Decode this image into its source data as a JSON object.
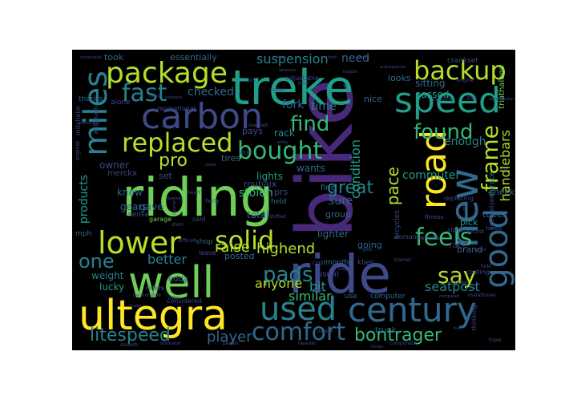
{
  "palette": {
    "background": "#000000",
    "viridis": [
      "#440154",
      "#482878",
      "#3e4989",
      "#31688e",
      "#26828e",
      "#1f9e89",
      "#35b779",
      "#6ece58",
      "#b5de2b",
      "#fde725"
    ]
  },
  "words": [
    {
      "text": "riding",
      "color": "#6ece58",
      "weight": 1.0
    },
    {
      "text": "bike",
      "color": "#482878",
      "weight": 1.0
    },
    {
      "text": "ride",
      "color": "#3e4989",
      "weight": 0.9
    },
    {
      "text": "ultegra",
      "color": "#fde725",
      "weight": 0.8
    },
    {
      "text": "treke",
      "color": "#1f9e89",
      "weight": 0.78
    },
    {
      "text": "carbon",
      "color": "#3e4989",
      "weight": 0.66
    },
    {
      "text": "well",
      "color": "#6ece58",
      "weight": 0.66
    },
    {
      "text": "century",
      "color": "#31688e",
      "weight": 0.6
    },
    {
      "text": "miles",
      "color": "#26828e",
      "weight": 0.6
    },
    {
      "text": "speed",
      "color": "#1f9e89",
      "weight": 0.54
    },
    {
      "text": "road",
      "color": "#fde725",
      "weight": 0.54
    },
    {
      "text": "new",
      "color": "#31688e",
      "weight": 0.56
    },
    {
      "text": "lower",
      "color": "#b5de2b",
      "weight": 0.5
    },
    {
      "text": "package",
      "color": "#b5de2b",
      "weight": 0.48
    },
    {
      "text": "used",
      "color": "#26828e",
      "weight": 0.5
    },
    {
      "text": "good",
      "color": "#31688e",
      "weight": 0.5
    },
    {
      "text": "replaced",
      "color": "#b5de2b",
      "weight": 0.44
    },
    {
      "text": "backup",
      "color": "#b5de2b",
      "weight": 0.4
    },
    {
      "text": "fast",
      "color": "#26828e",
      "weight": 0.4
    },
    {
      "text": "solid",
      "color": "#b5de2b",
      "weight": 0.4
    },
    {
      "text": "comfort",
      "color": "#31688e",
      "weight": 0.36
    },
    {
      "text": "bought",
      "color": "#35b779",
      "weight": 0.36
    },
    {
      "text": "frame",
      "color": "#b5de2b",
      "weight": 0.36
    },
    {
      "text": "found",
      "color": "#35b779",
      "weight": 0.36
    },
    {
      "text": "feels",
      "color": "#35b779",
      "weight": 0.36
    },
    {
      "text": "find",
      "color": "#35b779",
      "weight": 0.32
    },
    {
      "text": "say",
      "color": "#b5de2b",
      "weight": 0.32
    },
    {
      "text": "one",
      "color": "#26828e",
      "weight": 0.3
    },
    {
      "text": "pads",
      "color": "#26828e",
      "weight": 0.3
    },
    {
      "text": "pace",
      "color": "#b5de2b",
      "weight": 0.3
    },
    {
      "text": "litespeed",
      "color": "#26828e",
      "weight": 0.28
    },
    {
      "text": "great",
      "color": "#26828e",
      "weight": 0.28
    },
    {
      "text": "pro",
      "color": "#b5de2b",
      "weight": 0.28
    },
    {
      "text": "bontrager",
      "color": "#35b779",
      "weight": 0.24
    },
    {
      "text": "handlebars",
      "color": "#b5de2b",
      "weight": 0.24
    },
    {
      "text": "raise",
      "color": "#b5de2b",
      "weight": 0.22
    },
    {
      "text": "highend",
      "color": "#b5de2b",
      "weight": 0.2
    },
    {
      "text": "suspension",
      "color": "#26828e",
      "weight": 0.22
    },
    {
      "text": "seatpost",
      "color": "#26828e",
      "weight": 0.2
    },
    {
      "text": "condition",
      "color": "#1f9e89",
      "weight": 0.2
    },
    {
      "text": "player",
      "color": "#31688e",
      "weight": 0.2
    },
    {
      "text": "anyone",
      "color": "#b5de2b",
      "weight": 0.2
    },
    {
      "text": "similar",
      "color": "#35b779",
      "weight": 0.2
    },
    {
      "text": "better",
      "color": "#26828e",
      "weight": 0.18
    },
    {
      "text": "bit",
      "color": "#1f9e89",
      "weight": 0.18
    },
    {
      "text": "need",
      "color": "#31688e",
      "weight": 0.18
    },
    {
      "text": "time",
      "color": "#26828e",
      "weight": 0.18
    },
    {
      "text": "sure",
      "color": "#31688e",
      "weight": 0.18
    },
    {
      "text": "products",
      "color": "#1f9e89",
      "weight": 0.16
    },
    {
      "text": "commuter",
      "color": "#1f9e89",
      "weight": 0.16
    },
    {
      "text": "checked",
      "color": "#31688e",
      "weight": 0.16
    },
    {
      "text": "stolen",
      "color": "#35b779",
      "weight": 0.16
    },
    {
      "text": "fork",
      "color": "#31688e",
      "weight": 0.16
    },
    {
      "text": "enough",
      "color": "#26828e",
      "weight": 0.16
    },
    {
      "text": "wants",
      "color": "#31688e",
      "weight": 0.15
    },
    {
      "text": "sitting",
      "color": "#31688e",
      "weight": 0.15
    },
    {
      "text": "passed",
      "color": "#1f9e89",
      "weight": 0.14
    },
    {
      "text": "essentially",
      "color": "#31688e",
      "weight": 0.13
    },
    {
      "text": "rack",
      "color": "#26828e",
      "weight": 0.14
    },
    {
      "text": "knew",
      "color": "#31688e",
      "weight": 0.14
    },
    {
      "text": "lights",
      "color": "#1f9e89",
      "weight": 0.13
    },
    {
      "text": "prs",
      "color": "#3e4989",
      "weight": 0.13
    },
    {
      "text": "owner",
      "color": "#3e4989",
      "weight": 0.13
    },
    {
      "text": "weight",
      "color": "#26828e",
      "weight": 0.13
    },
    {
      "text": "lighter",
      "color": "#31688e",
      "weight": 0.13
    },
    {
      "text": "total",
      "color": "#31688e",
      "weight": 0.13
    },
    {
      "text": "posted",
      "color": "#31688e",
      "weight": 0.12
    },
    {
      "text": "lucky",
      "color": "#1f9e89",
      "weight": 0.12
    },
    {
      "text": "gears",
      "color": "#31688e",
      "weight": 0.12
    },
    {
      "text": "gave",
      "color": "#31688e",
      "weight": 0.12
    },
    {
      "text": "tires",
      "color": "#31688e",
      "weight": 0.11
    },
    {
      "text": "roubaix",
      "color": "#3e4989",
      "weight": 0.11
    },
    {
      "text": "eddy",
      "color": "#31688e",
      "weight": 0.11
    },
    {
      "text": "usual",
      "color": "#3e4989",
      "weight": 0.11
    },
    {
      "text": "pays",
      "color": "#3e4989",
      "weight": 0.11
    },
    {
      "text": "set",
      "color": "#3e4989",
      "weight": 0.11
    },
    {
      "text": "merckx",
      "color": "#3e4989",
      "weight": 0.1
    },
    {
      "text": "group",
      "color": "#31688e",
      "weight": 0.1
    },
    {
      "text": "fine",
      "color": "#31688e",
      "weight": 0.1
    },
    {
      "text": "tubes",
      "color": "#31688e",
      "weight": 0.1
    },
    {
      "text": "check",
      "color": "#31688e",
      "weight": 0.1
    },
    {
      "text": "pick",
      "color": "#1f9e89",
      "weight": 0.1
    },
    {
      "text": "brand",
      "color": "#31688e",
      "weight": 0.1
    },
    {
      "text": "race",
      "color": "#482878",
      "weight": 0.1
    },
    {
      "text": "going",
      "color": "#31688e",
      "weight": 0.1
    },
    {
      "text": "nice",
      "color": "#31688e",
      "weight": 0.1
    },
    {
      "text": "looks",
      "color": "#31688e",
      "weight": 0.1
    },
    {
      "text": "took",
      "color": "#31688e",
      "weight": 0.1
    },
    {
      "text": "crankset",
      "color": "#3e4989",
      "weight": 0.09
    },
    {
      "text": "triathalons",
      "color": "#6ece58",
      "weight": 0.09
    },
    {
      "text": "durace",
      "color": "#26828e",
      "weight": 0.09
    },
    {
      "text": "specialized",
      "color": "#3e4989",
      "weight": 0.09
    },
    {
      "text": "bicycles",
      "color": "#3e4989",
      "weight": 0.09
    },
    {
      "text": "held",
      "color": "#31688e",
      "weight": 0.09
    },
    {
      "text": "shop",
      "color": "#31688e",
      "weight": 0.09
    },
    {
      "text": "leave",
      "color": "#3e4989",
      "weight": 0.09
    },
    {
      "text": "months",
      "color": "#31688e",
      "weight": 0.09
    },
    {
      "text": "klien",
      "color": "#3e4989",
      "weight": 0.09
    },
    {
      "text": "trunk",
      "color": "#31688e",
      "weight": 0.09
    },
    {
      "text": "computer",
      "color": "#31688e",
      "weight": 0.09
    },
    {
      "text": "use",
      "color": "#31688e",
      "weight": 0.09
    },
    {
      "text": "cost",
      "color": "#3e4989",
      "weight": 0.08
    },
    {
      "text": "alot",
      "color": "#3e4989",
      "weight": 0.08
    },
    {
      "text": "considered",
      "color": "#3e4989",
      "weight": 0.08
    },
    {
      "text": "riders",
      "color": "#31688e",
      "weight": 0.08
    },
    {
      "text": "thanks",
      "color": "#31688e",
      "weight": 0.08
    },
    {
      "text": "mph",
      "color": "#31688e",
      "weight": 0.08
    },
    {
      "text": "sense",
      "color": "#3e4989",
      "weight": 0.08
    },
    {
      "text": "alone",
      "color": "#3e4989",
      "weight": 0.08
    },
    {
      "text": "although",
      "color": "#3e4989",
      "weight": 0.08
    },
    {
      "text": "recreational",
      "color": "#3e4989",
      "weight": 0.08
    },
    {
      "text": "adjustable",
      "color": "#3e4989",
      "weight": 0.08
    },
    {
      "text": "costing",
      "color": "#3e4989",
      "weight": 0.08
    },
    {
      "text": "thinking",
      "color": "#3e4989",
      "weight": 0.08
    },
    {
      "text": "replacing",
      "color": "#3e4989",
      "weight": 0.08
    },
    {
      "text": "fitness",
      "color": "#3e4989",
      "weight": 0.07
    },
    {
      "text": "domane",
      "color": "#3e4989",
      "weight": 0.08
    },
    {
      "text": "yes",
      "color": "#3e4989",
      "weight": 0.07
    },
    {
      "text": "alpha",
      "color": "#3e4989",
      "weight": 0.07
    },
    {
      "text": "wheels",
      "color": "#3e4989",
      "weight": 0.07
    },
    {
      "text": "cyclist",
      "color": "#3e4989",
      "weight": 0.07
    },
    {
      "text": "tuned",
      "color": "#3e4989",
      "weight": 0.07
    },
    {
      "text": "hold",
      "color": "#3e4989",
      "weight": 0.06
    },
    {
      "text": "marathoner",
      "color": "#3e4989",
      "weight": 0.06
    },
    {
      "text": "triple",
      "color": "#3e4989",
      "weight": 0.06
    },
    {
      "text": "componets",
      "color": "#3e4989",
      "weight": 0.06
    },
    {
      "text": "heavier",
      "color": "#3e4989",
      "weight": 0.06
    },
    {
      "text": "pedals",
      "color": "#3e4989",
      "weight": 0.06
    },
    {
      "text": "shimano",
      "color": "#3e4989",
      "weight": 0.06
    },
    {
      "text": "smooth",
      "color": "#3e4989",
      "weight": 0.06
    },
    {
      "text": "mitchelin",
      "color": "#3e4989",
      "weight": 0.07
    },
    {
      "text": "orginal",
      "color": "#3e4989",
      "weight": 0.06
    },
    {
      "text": "cannondale",
      "color": "#3e4989",
      "weight": 0.06
    },
    {
      "text": "stem",
      "color": "#3e4989",
      "weight": 0.06
    },
    {
      "text": "difficult",
      "color": "#3e4989",
      "weight": 0.06
    },
    {
      "text": "heart",
      "color": "#3e4989",
      "weight": 0.06
    },
    {
      "text": "garage",
      "color": "#6ece58",
      "weight": 0.07
    },
    {
      "text": "said",
      "color": "#3e4989",
      "weight": 0.07
    },
    {
      "text": "fairly",
      "color": "#3e4989",
      "weight": 0.06
    },
    {
      "text": "little",
      "color": "#3e4989",
      "weight": 0.06
    },
    {
      "text": "seemed",
      "color": "#3e4989",
      "weight": 0.06
    },
    {
      "text": "shifted",
      "color": "#3e4989",
      "weight": 0.06
    },
    {
      "text": "buy",
      "color": "#3e4989",
      "weight": 0.06
    },
    {
      "text": "makes",
      "color": "#3e4989",
      "weight": 0.06
    },
    {
      "text": "certainly",
      "color": "#3e4989",
      "weight": 0.06
    },
    {
      "text": "stay",
      "color": "#3e4989",
      "weight": 0.06
    },
    {
      "text": "engine",
      "color": "#3e4989",
      "weight": 0.06
    },
    {
      "text": "football",
      "color": "#3e4989",
      "weight": 0.06
    },
    {
      "text": "lot",
      "color": "#3e4989",
      "weight": 0.06
    },
    {
      "text": "trainier",
      "color": "#3e4989",
      "weight": 0.06
    },
    {
      "text": "started",
      "color": "#3e4989",
      "weight": 0.05
    },
    {
      "text": "contains",
      "color": "#3e4989",
      "weight": 0.05
    },
    {
      "text": "rugby",
      "color": "#3e4989",
      "weight": 0.05
    },
    {
      "text": "thisbike",
      "color": "#3e4989",
      "weight": 0.05
    },
    {
      "text": "flawless",
      "color": "#3e4989",
      "weight": 0.05
    },
    {
      "text": "teramo",
      "color": "#3e4989",
      "weight": 0.05
    },
    {
      "text": "ridden",
      "color": "#3e4989",
      "weight": 0.05
    },
    {
      "text": "entry",
      "color": "#3e4989",
      "weight": 0.05
    },
    {
      "text": "grow",
      "color": "#3e4989",
      "weight": 0.05
    },
    {
      "text": "stiff",
      "color": "#3e4989",
      "weight": 0.05
    },
    {
      "text": "giant",
      "color": "#3e4989",
      "weight": 0.05
    },
    {
      "text": "fun",
      "color": "#3e4989",
      "weight": 0.05
    },
    {
      "text": "sized",
      "color": "#3e4989",
      "weight": 0.05
    },
    {
      "text": "family",
      "color": "#3e4989",
      "weight": 0.05
    },
    {
      "text": "shock",
      "color": "#3e4989",
      "weight": 0.05
    },
    {
      "text": "trouble",
      "color": "#3e4989",
      "weight": 0.05
    },
    {
      "text": "price",
      "color": "#3e4989",
      "weight": 0.05
    },
    {
      "text": "absence",
      "color": "#3e4989",
      "weight": 0.05
    },
    {
      "text": "heavy",
      "color": "#3e4989",
      "weight": 0.05
    },
    {
      "text": "occasional",
      "color": "#3e4989",
      "weight": 0.05
    },
    {
      "text": "andreasonds",
      "color": "#3e4989",
      "weight": 0.05
    },
    {
      "text": "eventually",
      "color": "#3e4989",
      "weight": 0.05
    },
    {
      "text": "climbs",
      "color": "#3e4989",
      "weight": 0.05
    },
    {
      "text": "brake",
      "color": "#3e4989",
      "weight": 0.05
    },
    {
      "text": "long",
      "color": "#3e4989",
      "weight": 0.05
    },
    {
      "text": "compared",
      "color": "#3e4989",
      "weight": 0.05
    },
    {
      "text": "significantly",
      "color": "#3e4989",
      "weight": 0.05
    }
  ]
}
